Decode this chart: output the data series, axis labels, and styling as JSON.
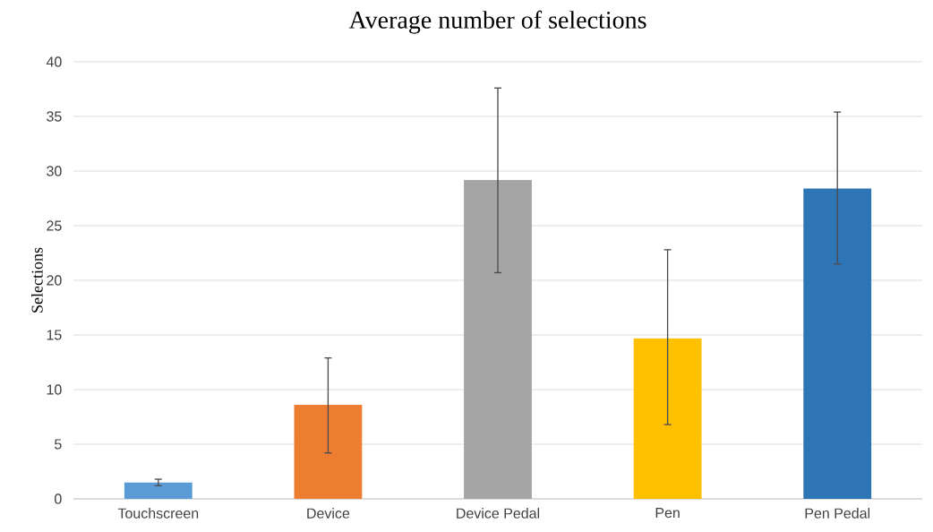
{
  "chart_data": {
    "type": "bar",
    "title": "Average number of selections",
    "ylabel": "Selections",
    "categories": [
      "Touchscreen",
      "Device",
      "Device Pedal",
      "Pen",
      "Pen Pedal"
    ],
    "values": [
      1.5,
      8.6,
      29.2,
      14.7,
      28.4
    ],
    "errors": [
      [
        1.2,
        1.8
      ],
      [
        4.2,
        12.9
      ],
      [
        20.7,
        37.6
      ],
      [
        6.8,
        22.8
      ],
      [
        21.5,
        35.4
      ]
    ],
    "colors": [
      "#5b9bd5",
      "#ed7d31",
      "#a5a5a5",
      "#ffc000",
      "#2e75b6"
    ],
    "ylim": [
      0,
      40
    ],
    "yticks": [
      0,
      5,
      10,
      15,
      20,
      25,
      30,
      35,
      40
    ],
    "grid": "y"
  }
}
